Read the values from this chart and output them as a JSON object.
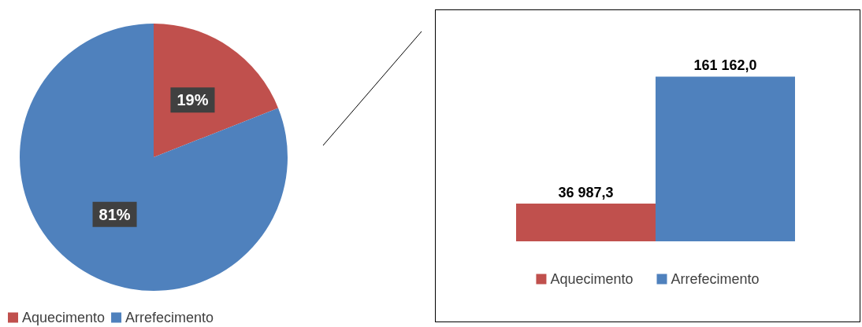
{
  "chart_data": [
    {
      "type": "pie",
      "categories": [
        "Aquecimento",
        "Arrefecimento"
      ],
      "values": [
        19,
        81
      ],
      "colors": [
        "#c0504d",
        "#4f81bd"
      ],
      "value_labels": [
        "19%",
        "81%"
      ],
      "legend": "bottom left"
    },
    {
      "type": "bar",
      "categories": [
        null
      ],
      "series": [
        {
          "name": "Aquecimento",
          "color": "#c0504d",
          "values": [
            36987.3
          ],
          "value_labels": [
            "36 987,3"
          ]
        },
        {
          "name": "Arrefecimento",
          "color": "#4f81bd",
          "values": [
            161162.0
          ],
          "value_labels": [
            "161 162,0"
          ]
        }
      ],
      "legend": "bottom"
    }
  ]
}
